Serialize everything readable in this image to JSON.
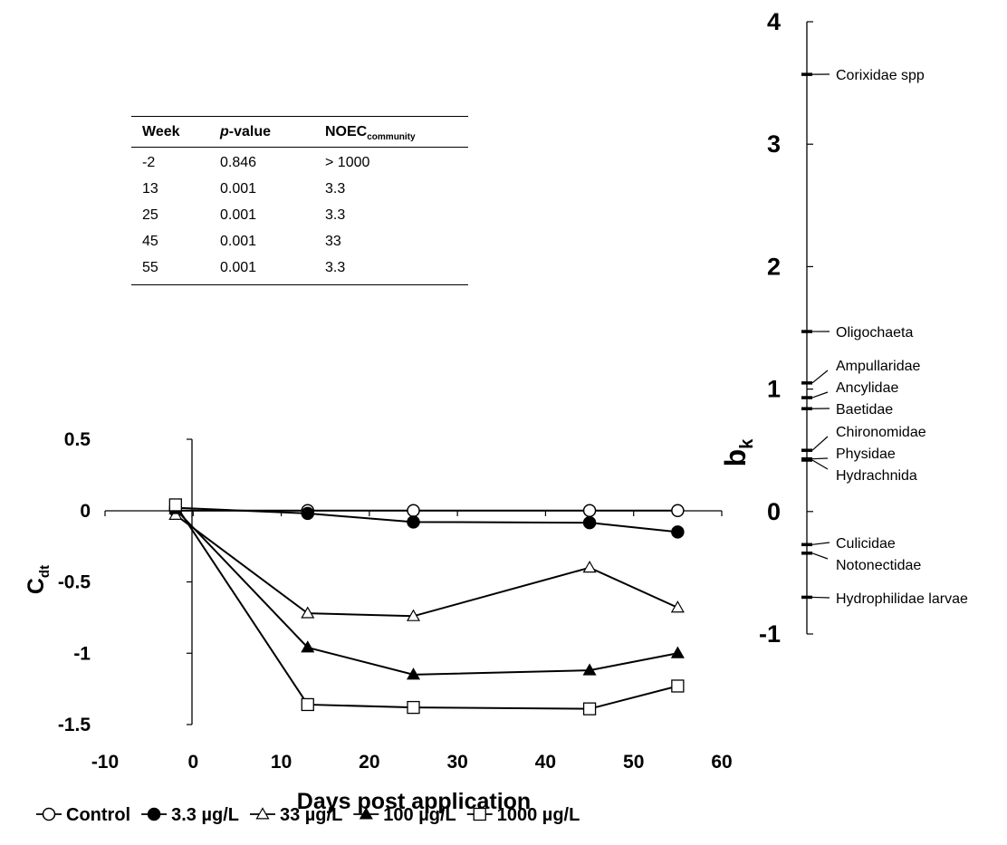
{
  "chart_data": [
    {
      "type": "line",
      "xlabel": "Days post application",
      "ylabel": "C",
      "ylabel_sub": "dt",
      "xlim": [
        -10,
        60
      ],
      "ylim": [
        -1.5,
        0.5
      ],
      "xticks": [
        -10,
        0,
        10,
        20,
        30,
        40,
        50,
        60
      ],
      "yticks": [
        0.5,
        0,
        -0.5,
        -1,
        -1.5
      ],
      "grid": false,
      "legend_position": "bottom",
      "series": [
        {
          "name": "Control",
          "marker": "open-circle",
          "x": [
            -2,
            13,
            25,
            45,
            55
          ],
          "y": [
            0,
            0,
            0,
            0,
            0
          ]
        },
        {
          "name": "3.3 µg/L",
          "marker": "filled-circle",
          "x": [
            -2,
            13,
            25,
            45,
            55
          ],
          "y": [
            0.02,
            -0.02,
            -0.08,
            -0.085,
            -0.15
          ]
        },
        {
          "name": "33 µg/L",
          "marker": "open-triangle",
          "x": [
            -2,
            13,
            25,
            45,
            55
          ],
          "y": [
            -0.03,
            -0.72,
            -0.74,
            -0.4,
            -0.68
          ]
        },
        {
          "name": "100 µg/L",
          "marker": "filled-triangle",
          "x": [
            -2,
            13,
            25,
            45,
            55
          ],
          "y": [
            0.01,
            -0.96,
            -1.15,
            -1.12,
            -1.0
          ]
        },
        {
          "name": "1000 µg/L",
          "marker": "open-square",
          "x": [
            -2,
            13,
            25,
            45,
            55
          ],
          "y": [
            0.04,
            -1.36,
            -1.38,
            -1.39,
            -1.23
          ]
        }
      ]
    },
    {
      "type": "species-weights",
      "ylabel": "b",
      "ylabel_sub": "k",
      "ylim": [
        -1,
        4
      ],
      "yticks": [
        4,
        3,
        2,
        1,
        0,
        -1
      ],
      "taxa": [
        {
          "name": "Corixidae spp",
          "value": 3.57
        },
        {
          "name": "Oligochaeta",
          "value": 1.47
        },
        {
          "name": "Ampullaridae",
          "value": 1.05
        },
        {
          "name": "Ancylidae",
          "value": 0.93
        },
        {
          "name": "Baetidae",
          "value": 0.84
        },
        {
          "name": "Chironomidae",
          "value": 0.5
        },
        {
          "name": "Physidae",
          "value": 0.43
        },
        {
          "name": "Hydrachnida",
          "value": 0.42
        },
        {
          "name": "Culicidae",
          "value": -0.27
        },
        {
          "name": "Notonectidae",
          "value": -0.34
        },
        {
          "name": "Hydrophilidae larvae",
          "value": -0.7
        }
      ]
    }
  ],
  "table": {
    "headers": {
      "week": "Week",
      "p_italic": "p",
      "p_rest": "-value",
      "noec": "NOEC",
      "noec_sub": "community"
    },
    "rows": [
      {
        "week": "-2",
        "p": "0.846",
        "noec": "> 1000"
      },
      {
        "week": "13",
        "p": "0.001",
        "noec": "3.3"
      },
      {
        "week": "25",
        "p": "0.001",
        "noec": "3.3"
      },
      {
        "week": "45",
        "p": "0.001",
        "noec": "33"
      },
      {
        "week": "55",
        "p": "0.001",
        "noec": "3.3"
      }
    ]
  }
}
